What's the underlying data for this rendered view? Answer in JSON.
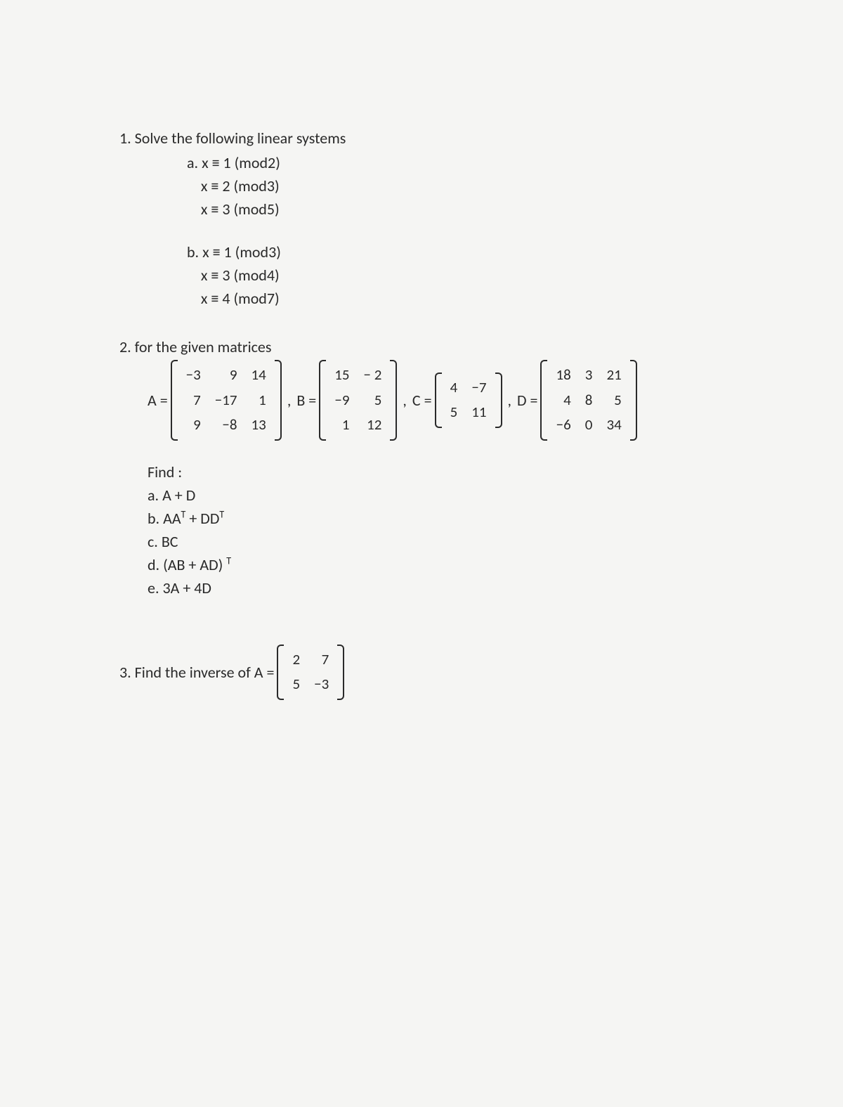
{
  "q1": {
    "title": "1.  Solve the following linear systems",
    "a": {
      "label": "a.",
      "lines": [
        "x ≡ 1 (mod2)",
        "x ≡ 2 (mod3)",
        "x ≡ 3 (mod5)"
      ]
    },
    "b": {
      "label": "b.",
      "lines": [
        "x ≡ 1 (mod3)",
        "x ≡ 3 (mod4)",
        "x ≡ 4 (mod7)"
      ]
    }
  },
  "q2": {
    "title": "2.  for the given matrices",
    "A_label": "A =",
    "B_label": "B =",
    "C_label": "C =",
    "D_label": "D =",
    "comma": ",",
    "A": [
      [
        "−3",
        "9",
        "14"
      ],
      [
        "7",
        "−17",
        "1"
      ],
      [
        "9",
        "−8",
        "13"
      ]
    ],
    "B": [
      [
        "15",
        "− 2"
      ],
      [
        "−9",
        "5"
      ],
      [
        "1",
        "12"
      ]
    ],
    "C": [
      [
        "4",
        "−7"
      ],
      [
        "5",
        "11"
      ]
    ],
    "D": [
      [
        "18",
        "3",
        "21"
      ],
      [
        "4",
        "8",
        "5"
      ],
      [
        "−6",
        "0",
        "34"
      ]
    ],
    "find_label": "Find :",
    "items": {
      "a": "a.   A + D",
      "b_pre": "b.   AA",
      "b_mid": " + DD",
      "c": "c.   BC",
      "d_pre": "d.   (AB + AD) ",
      "e": "e.   3A + 4D",
      "T": "T"
    }
  },
  "q3": {
    "title": "3.  Find the inverse of  A =",
    "M": [
      [
        "2",
        "7"
      ],
      [
        "5",
        "−3"
      ]
    ]
  }
}
